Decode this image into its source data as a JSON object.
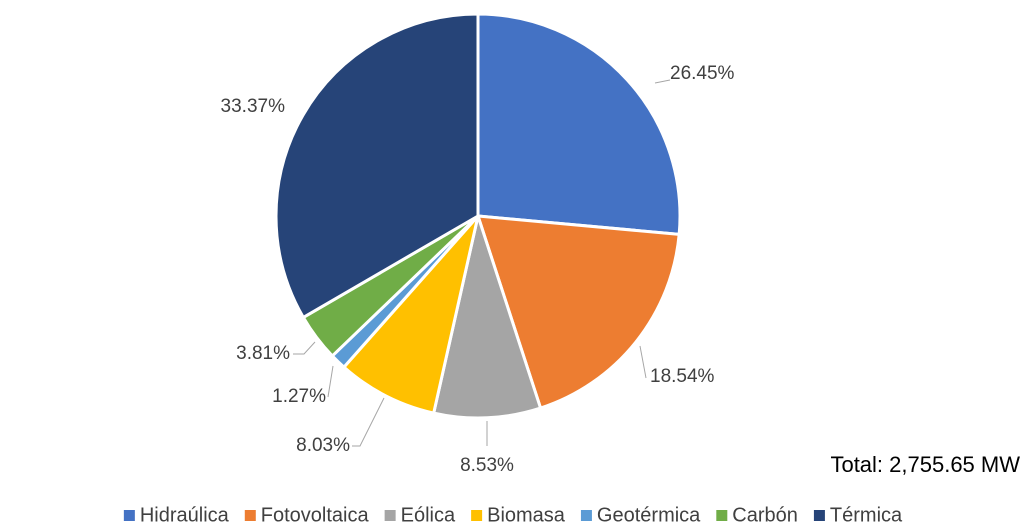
{
  "chart_data": {
    "type": "pie",
    "categories": [
      "Hidraúlica",
      "Fotovoltaica",
      "Eólica",
      "Biomasa",
      "Geotérmica",
      "Carbón",
      "Térmica"
    ],
    "values": [
      26.45,
      18.54,
      8.53,
      8.03,
      1.27,
      3.81,
      33.37
    ],
    "value_labels": [
      "26.45%",
      "18.54%",
      "8.53%",
      "8.03%",
      "1.27%",
      "3.81%",
      "33.37%"
    ],
    "colors": [
      "#4472c4",
      "#ed7d31",
      "#a5a5a5",
      "#ffc000",
      "#5b9bd5",
      "#70ad47",
      "#264478"
    ],
    "annotation": "Total: 2,755.65 MW",
    "legend": "bottom"
  }
}
